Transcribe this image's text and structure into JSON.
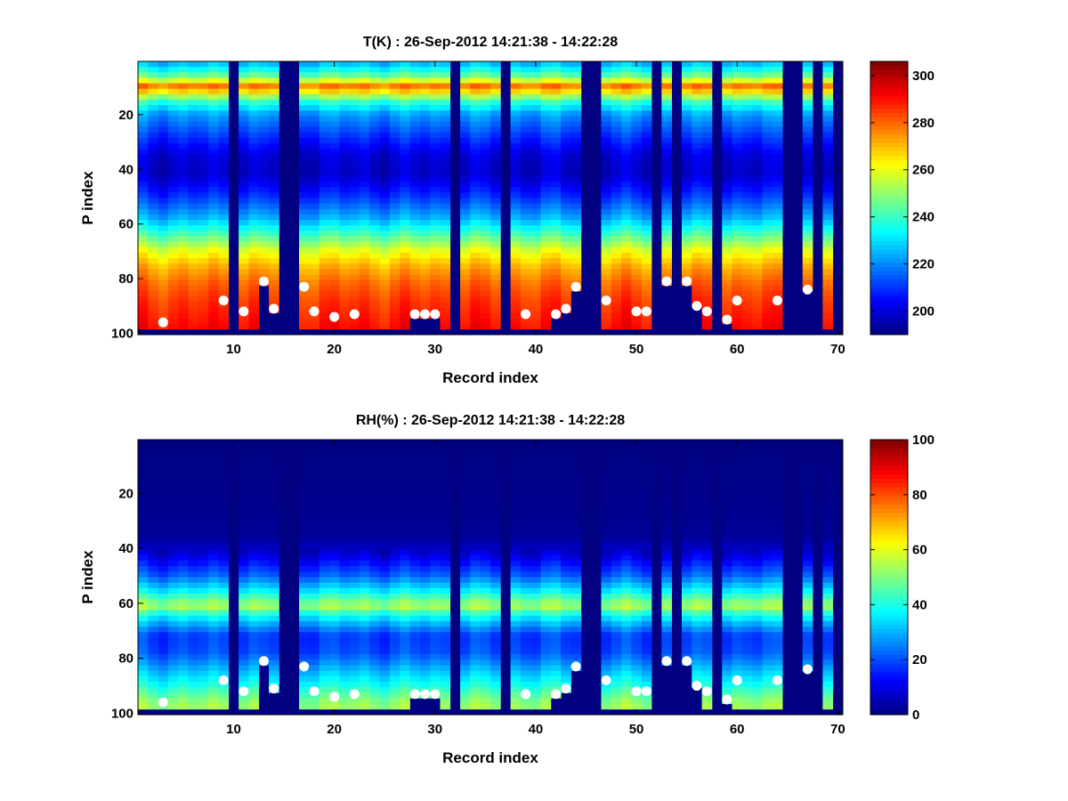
{
  "chart_data": [
    {
      "type": "heatmap",
      "title": "T(K) : 26-Sep-2012 14:21:38 - 14:22:28",
      "xlabel": "Record index",
      "ylabel": "P index",
      "xlim": [
        0.5,
        70.5
      ],
      "ylim": [
        100,
        1
      ],
      "y_reversed": true,
      "xticks": [
        10,
        20,
        30,
        40,
        50,
        60,
        70
      ],
      "yticks": [
        20,
        40,
        60,
        80,
        100
      ],
      "colormap": "jet",
      "colorbar": {
        "min": 190,
        "max": 306,
        "ticks": [
          200,
          220,
          240,
          260,
          280,
          300
        ]
      },
      "profile_by_p_index": [
        [
          1,
          225
        ],
        [
          5,
          240
        ],
        [
          8,
          262
        ],
        [
          10,
          282
        ],
        [
          12,
          262
        ],
        [
          15,
          240
        ],
        [
          20,
          222
        ],
        [
          28,
          210
        ],
        [
          35,
          200
        ],
        [
          42,
          198
        ],
        [
          50,
          210
        ],
        [
          58,
          225
        ],
        [
          64,
          242
        ],
        [
          70,
          260
        ],
        [
          76,
          272
        ],
        [
          82,
          280
        ],
        [
          88,
          285
        ],
        [
          95,
          289
        ],
        [
          100,
          292
        ]
      ],
      "missing_records": [
        10,
        15,
        16,
        32,
        37,
        45,
        46,
        52,
        54,
        58,
        65,
        66,
        68,
        70
      ],
      "missing_below_marker_records": [
        13,
        14,
        28,
        29,
        30,
        40,
        41,
        42,
        43,
        44,
        49,
        53,
        55,
        56,
        59,
        67
      ],
      "markers": [
        {
          "record": 3,
          "p_index": 96
        },
        {
          "record": 9,
          "p_index": 88
        },
        {
          "record": 11,
          "p_index": 92
        },
        {
          "record": 13,
          "p_index": 81
        },
        {
          "record": 14,
          "p_index": 91
        },
        {
          "record": 17,
          "p_index": 83
        },
        {
          "record": 18,
          "p_index": 92
        },
        {
          "record": 20,
          "p_index": 94
        },
        {
          "record": 22,
          "p_index": 93
        },
        {
          "record": 28,
          "p_index": 93
        },
        {
          "record": 29,
          "p_index": 93
        },
        {
          "record": 30,
          "p_index": 93
        },
        {
          "record": 39,
          "p_index": 93
        },
        {
          "record": 42,
          "p_index": 93
        },
        {
          "record": 43,
          "p_index": 91
        },
        {
          "record": 44,
          "p_index": 83
        },
        {
          "record": 47,
          "p_index": 88
        },
        {
          "record": 50,
          "p_index": 92
        },
        {
          "record": 51,
          "p_index": 92
        },
        {
          "record": 53,
          "p_index": 81
        },
        {
          "record": 55,
          "p_index": 81
        },
        {
          "record": 56,
          "p_index": 90
        },
        {
          "record": 57,
          "p_index": 92
        },
        {
          "record": 59,
          "p_index": 95
        },
        {
          "record": 60,
          "p_index": 88
        },
        {
          "record": 64,
          "p_index": 88
        },
        {
          "record": 67,
          "p_index": 84
        }
      ],
      "marker_color": "#ffffff"
    },
    {
      "type": "heatmap",
      "title": "RH(%) : 26-Sep-2012 14:21:38 - 14:22:28",
      "xlabel": "Record index",
      "ylabel": "P index",
      "xlim": [
        0.5,
        70.5
      ],
      "ylim": [
        100,
        1
      ],
      "y_reversed": true,
      "xticks": [
        10,
        20,
        30,
        40,
        50,
        60,
        70
      ],
      "yticks": [
        20,
        40,
        60,
        80,
        100
      ],
      "colormap": "jet",
      "colorbar": {
        "min": 0,
        "max": 100,
        "ticks": [
          0,
          20,
          40,
          60,
          80,
          100
        ]
      },
      "profile_by_p_index": [
        [
          1,
          0
        ],
        [
          35,
          2
        ],
        [
          42,
          8
        ],
        [
          50,
          22
        ],
        [
          55,
          35
        ],
        [
          58,
          45
        ],
        [
          61,
          55
        ],
        [
          64,
          40
        ],
        [
          68,
          28
        ],
        [
          72,
          18
        ],
        [
          78,
          20
        ],
        [
          84,
          30
        ],
        [
          90,
          40
        ],
        [
          95,
          50
        ],
        [
          100,
          55
        ]
      ],
      "missing_records": [
        10,
        15,
        16,
        32,
        37,
        45,
        46,
        52,
        54,
        58,
        65,
        66,
        68,
        70
      ],
      "missing_below_marker_records": [
        13,
        14,
        28,
        29,
        30,
        40,
        41,
        42,
        43,
        44,
        49,
        53,
        55,
        56,
        59,
        67
      ],
      "markers": [
        {
          "record": 3,
          "p_index": 96
        },
        {
          "record": 9,
          "p_index": 88
        },
        {
          "record": 11,
          "p_index": 92
        },
        {
          "record": 13,
          "p_index": 81
        },
        {
          "record": 14,
          "p_index": 91
        },
        {
          "record": 17,
          "p_index": 83
        },
        {
          "record": 18,
          "p_index": 92
        },
        {
          "record": 20,
          "p_index": 94
        },
        {
          "record": 22,
          "p_index": 93
        },
        {
          "record": 28,
          "p_index": 93
        },
        {
          "record": 29,
          "p_index": 93
        },
        {
          "record": 30,
          "p_index": 93
        },
        {
          "record": 39,
          "p_index": 93
        },
        {
          "record": 42,
          "p_index": 93
        },
        {
          "record": 43,
          "p_index": 91
        },
        {
          "record": 44,
          "p_index": 83
        },
        {
          "record": 47,
          "p_index": 88
        },
        {
          "record": 50,
          "p_index": 92
        },
        {
          "record": 51,
          "p_index": 92
        },
        {
          "record": 53,
          "p_index": 81
        },
        {
          "record": 55,
          "p_index": 81
        },
        {
          "record": 56,
          "p_index": 90
        },
        {
          "record": 57,
          "p_index": 92
        },
        {
          "record": 59,
          "p_index": 95
        },
        {
          "record": 60,
          "p_index": 88
        },
        {
          "record": 64,
          "p_index": 88
        },
        {
          "record": 67,
          "p_index": 84
        }
      ],
      "marker_color": "#ffffff"
    }
  ]
}
